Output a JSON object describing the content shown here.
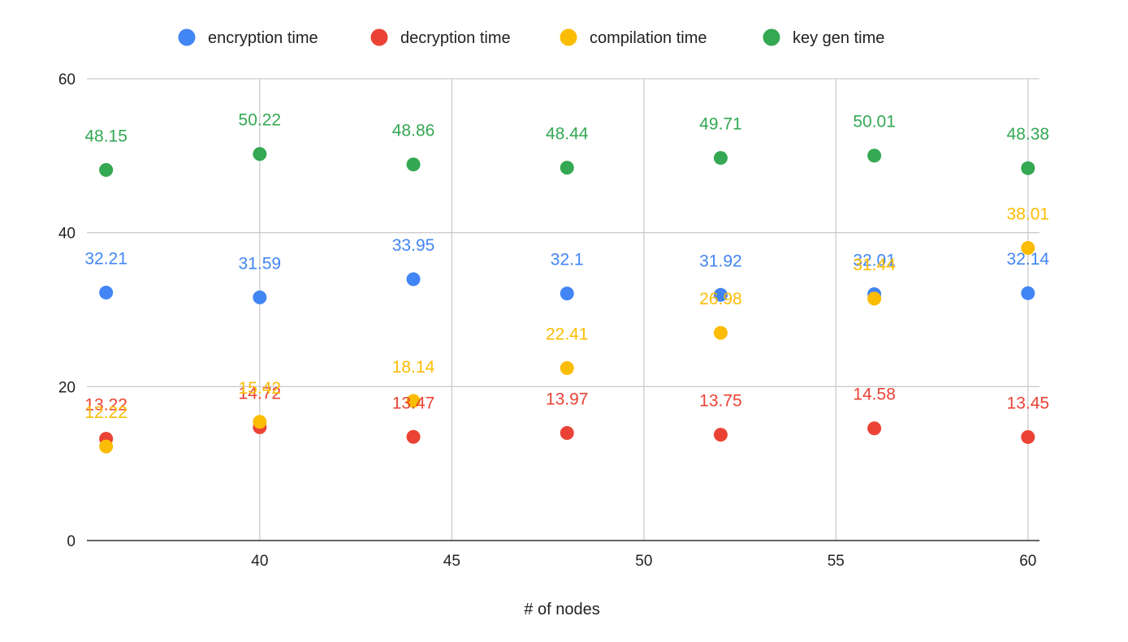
{
  "chart_data": {
    "type": "scatter",
    "title": "",
    "xlabel": "# of nodes",
    "ylabel": "",
    "xlim": [
      35.5,
      60.3
    ],
    "ylim": [
      0,
      60
    ],
    "x_ticks": [
      40,
      45,
      50,
      55,
      60
    ],
    "y_ticks": [
      0,
      20,
      40,
      60
    ],
    "grid": true,
    "legend_position": "top",
    "x": [
      36,
      40,
      44,
      48,
      52,
      56,
      60
    ],
    "series": [
      {
        "name": "encryption time",
        "color": "#4285F4",
        "values": [
          32.21,
          31.59,
          33.95,
          32.1,
          31.92,
          32.01,
          32.14
        ]
      },
      {
        "name": "decryption time",
        "color": "#EA4335",
        "values": [
          13.22,
          14.72,
          13.47,
          13.97,
          13.75,
          14.58,
          13.45
        ]
      },
      {
        "name": "compilation time",
        "color": "#FBBC04",
        "values": [
          12.22,
          15.42,
          18.14,
          22.41,
          26.98,
          31.44,
          38.01
        ]
      },
      {
        "name": "key gen time",
        "color": "#34A853",
        "values": [
          48.15,
          50.22,
          48.86,
          48.44,
          49.71,
          50.01,
          48.38
        ]
      }
    ]
  }
}
